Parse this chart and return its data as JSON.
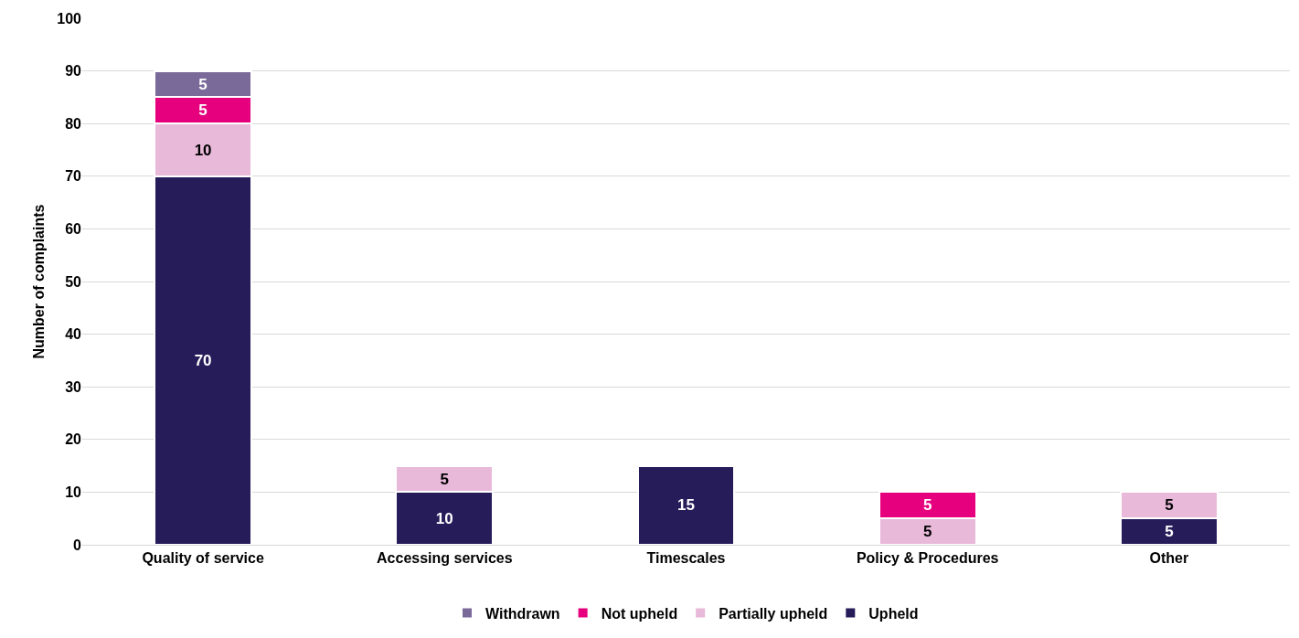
{
  "chart_data": {
    "type": "bar",
    "stacked": true,
    "ylabel": "Number of complaints",
    "categories": [
      "Quality of service",
      "Accessing services",
      "Timescales",
      "Policy & Procedures",
      "Other"
    ],
    "series": [
      {
        "name": "Upheld",
        "color": "#261c5a",
        "values": [
          70,
          10,
          15,
          null,
          5
        ]
      },
      {
        "name": "Partially upheld",
        "color": "#e8b9d9",
        "values": [
          10,
          5,
          null,
          5,
          5
        ]
      },
      {
        "name": "Not upheld",
        "color": "#e6007e",
        "values": [
          5,
          null,
          null,
          5,
          null
        ]
      },
      {
        "name": "Withdrawn",
        "color": "#7a6a99",
        "values": [
          5,
          null,
          null,
          null,
          null
        ]
      }
    ],
    "ylim": [
      0,
      100
    ],
    "yticks": [
      0,
      10,
      20,
      30,
      40,
      50,
      60,
      70,
      80,
      90,
      100
    ],
    "grid": "y",
    "legend": "bottom",
    "data_labels": true
  }
}
